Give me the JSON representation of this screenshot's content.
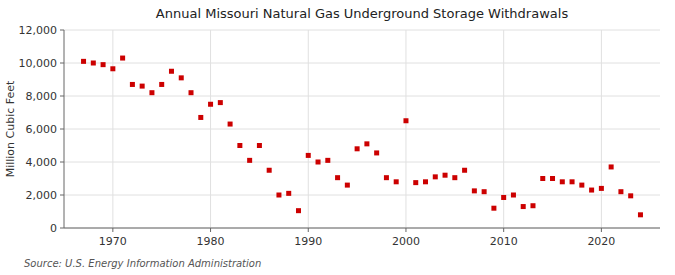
{
  "chart_data": {
    "type": "scatter",
    "title": "Annual Missouri Natural  Gas Underground Storage Withdrawals",
    "ylabel": "Million Cubic Feet",
    "annotations": [
      "Source: U.S. Energy Information Administration"
    ],
    "x": [
      1967,
      1968,
      1969,
      1970,
      1971,
      1972,
      1973,
      1974,
      1975,
      1976,
      1977,
      1978,
      1979,
      1980,
      1981,
      1982,
      1983,
      1984,
      1985,
      1986,
      1987,
      1988,
      1989,
      1990,
      1991,
      1992,
      1993,
      1994,
      1995,
      1996,
      1997,
      1998,
      1999,
      2000,
      2001,
      2002,
      2003,
      2004,
      2005,
      2006,
      2007,
      2008,
      2009,
      2010,
      2011,
      2012,
      2013,
      2014,
      2015,
      2016,
      2017,
      2018,
      2019,
      2020,
      2021,
      2022,
      2023,
      2024
    ],
    "values": [
      10100,
      10000,
      9900,
      9650,
      10300,
      8700,
      8600,
      8200,
      8700,
      9500,
      9100,
      8200,
      6700,
      7500,
      7600,
      6300,
      5000,
      4100,
      5000,
      3500,
      2000,
      2100,
      1050,
      4400,
      4000,
      4100,
      3050,
      2600,
      4800,
      5100,
      4550,
      3050,
      2800,
      6500,
      2750,
      2800,
      3100,
      3200,
      3050,
      3500,
      2250,
      2200,
      1200,
      1850,
      2000,
      1300,
      1350,
      3000,
      3000,
      2800,
      2800,
      2600,
      2300,
      2400,
      3700,
      2200,
      1950,
      800
    ],
    "color": "#cc0000",
    "marker": "square",
    "xlim": [
      1965,
      2026
    ],
    "ylim": [
      0,
      12000
    ],
    "xticks": [
      1970,
      1980,
      1990,
      2000,
      2010,
      2020
    ],
    "yticks": [
      0,
      {
        "value": 2000,
        "label": "2,000"
      },
      {
        "value": 4000,
        "label": "4,000"
      },
      {
        "value": 6000,
        "label": "6,000"
      },
      {
        "value": 8000,
        "label": "8,000"
      },
      {
        "value": 10000,
        "label": "10,000"
      },
      {
        "value": 12000,
        "label": "12,000"
      }
    ],
    "grid": true
  }
}
